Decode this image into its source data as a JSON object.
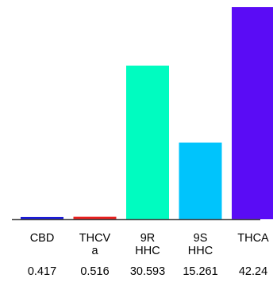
{
  "chart_data": {
    "type": "bar",
    "categories": [
      {
        "lines": [
          "CBD"
        ]
      },
      {
        "lines": [
          "THCV",
          "a"
        ]
      },
      {
        "lines": [
          "9R",
          "HHC"
        ]
      },
      {
        "lines": [
          "9S",
          "HHC"
        ]
      },
      {
        "lines": [
          "THCA"
        ]
      }
    ],
    "values": [
      0.417,
      0.516,
      30.593,
      15.261,
      42.24
    ],
    "value_labels": [
      "0.417",
      "0.516",
      "30.593",
      "15.261",
      "42.24"
    ],
    "colors": [
      "#1a1ad6",
      "#e8201e",
      "#00fcc0",
      "#00c4fc",
      "#5a0cf5"
    ],
    "axis_color": "#444444",
    "title": "",
    "xlabel": "",
    "ylabel": "",
    "ylim": [
      0,
      42.24
    ],
    "grid": false,
    "legend": "none"
  }
}
